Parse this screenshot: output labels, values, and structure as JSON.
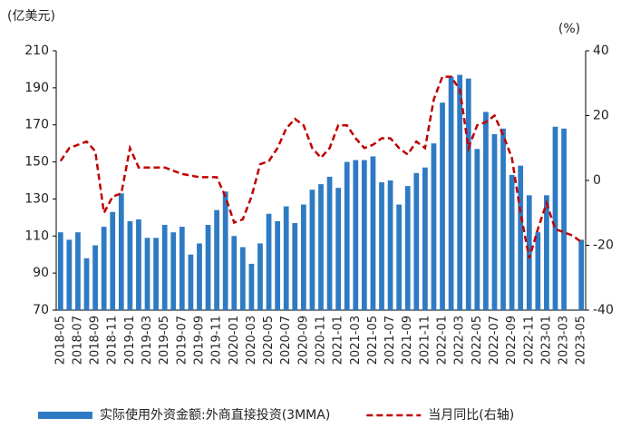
{
  "chart_data": {
    "type": "bar_line",
    "y_label": "(亿美元)",
    "y2_label": "(%)",
    "categories": [
      "2018-05",
      null,
      "2018-07",
      null,
      "2018-09",
      null,
      "2018-11",
      null,
      "2019-01",
      null,
      "2019-03",
      null,
      "2019-05",
      null,
      "2019-07",
      null,
      "2019-09",
      null,
      "2019-11",
      null,
      "2020-01",
      null,
      "2020-03",
      null,
      "2020-05",
      null,
      "2020-07",
      null,
      "2020-09",
      null,
      "2020-11",
      null,
      "2021-01",
      null,
      "2021-03",
      null,
      "2021-05",
      null,
      "2021-07",
      null,
      "2021-09",
      null,
      "2021-11",
      null,
      "2022-01",
      null,
      "2022-03",
      null,
      "2022-05",
      null,
      "2022-07",
      null,
      "2022-09",
      null,
      "2022-11",
      null,
      "2023-01",
      null,
      "2023-03",
      null,
      "2023-05"
    ],
    "series": [
      {
        "name": "实际使用外资金额:外商直接投资(3MMA)",
        "type": "bar",
        "color": "#2e7bc4",
        "values": [
          112,
          108,
          112,
          98,
          105,
          115,
          123,
          133,
          118,
          119,
          109,
          109,
          116,
          112,
          115,
          100,
          106,
          116,
          124,
          134,
          110,
          104,
          95,
          106,
          122,
          118,
          126,
          117,
          127,
          135,
          138,
          142,
          136,
          150,
          151,
          151,
          153,
          139,
          140,
          127,
          137,
          144,
          147,
          160,
          182,
          196,
          197,
          195,
          157,
          177,
          165,
          168,
          143,
          148,
          132,
          112,
          132,
          169,
          168,
          null,
          108
        ]
      },
      {
        "name": "当月同比(右轴)",
        "type": "line",
        "axis": "y2",
        "color": "#c00000",
        "values": [
          6,
          10,
          11,
          12,
          9,
          -10,
          -5,
          -4,
          10,
          4,
          4,
          4,
          4,
          3,
          2,
          1.5,
          1,
          1,
          1,
          -5,
          -13,
          -12,
          -5,
          5,
          6,
          10,
          16,
          19,
          17,
          10,
          7,
          10,
          17,
          17,
          13,
          10,
          11,
          13,
          13,
          10,
          8,
          12,
          10,
          25,
          32,
          32,
          28,
          10,
          17,
          18,
          20,
          14,
          7,
          -10,
          -24,
          -15,
          -7,
          -15,
          -16,
          -17,
          -19
        ]
      }
    ],
    "ylim": [
      70,
      210
    ],
    "yticks": [
      70,
      90,
      110,
      130,
      150,
      170,
      190,
      210
    ],
    "y2lim": [
      -40,
      40
    ],
    "y2ticks": [
      -40,
      -20,
      0,
      20,
      40
    ],
    "legend": "bottom"
  }
}
